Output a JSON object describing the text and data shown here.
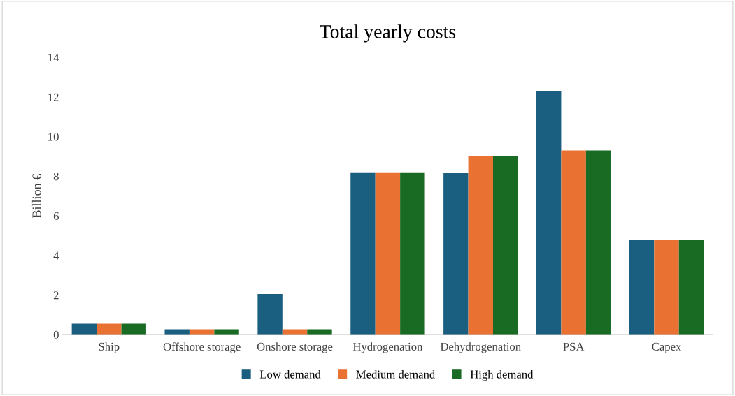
{
  "chart_data": {
    "type": "bar",
    "title": "Total yearly costs",
    "ylabel": "Billion €",
    "categories": [
      "Ship",
      "Offshore storage",
      "Onshore storage",
      "Hydrogenation",
      "Dehydrogenation",
      "PSA",
      "Capex"
    ],
    "series": [
      {
        "name": "Low demand",
        "color": "#1a5e80",
        "values": [
          0.55,
          0.27,
          2.05,
          8.2,
          8.15,
          12.3,
          4.8
        ]
      },
      {
        "name": "Medium demand",
        "color": "#e97132",
        "values": [
          0.55,
          0.27,
          0.27,
          8.2,
          9.0,
          9.3,
          4.8
        ]
      },
      {
        "name": "High demand",
        "color": "#196b24",
        "values": [
          0.55,
          0.27,
          0.27,
          8.2,
          9.0,
          9.3,
          4.8
        ]
      }
    ],
    "ylim": [
      0,
      14
    ],
    "yticks": [
      0,
      2,
      4,
      6,
      8,
      10,
      12,
      14
    ],
    "grid": false,
    "legend": "bottom"
  }
}
